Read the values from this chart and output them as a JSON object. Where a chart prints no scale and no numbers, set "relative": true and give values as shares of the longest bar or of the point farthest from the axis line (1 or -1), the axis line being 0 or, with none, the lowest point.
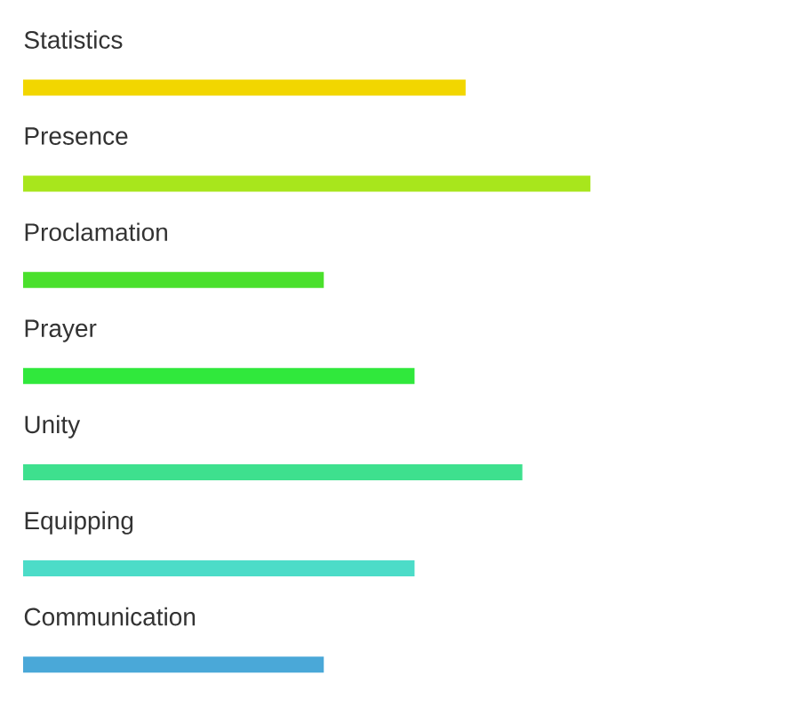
{
  "chart_data": {
    "type": "bar",
    "orientation": "horizontal",
    "relative": true,
    "categories": [
      "Statistics",
      "Presence",
      "Proclamation",
      "Prayer",
      "Unity",
      "Equipping",
      "Communication"
    ],
    "values": [
      0.78,
      1,
      0.53,
      0.69,
      0.88,
      0.69,
      0.53
    ],
    "colors": [
      "#f2d600",
      "#a8e61c",
      "#4ae02c",
      "#30e83c",
      "#3ee08e",
      "#4cdcc8",
      "#4aa8d8"
    ]
  }
}
